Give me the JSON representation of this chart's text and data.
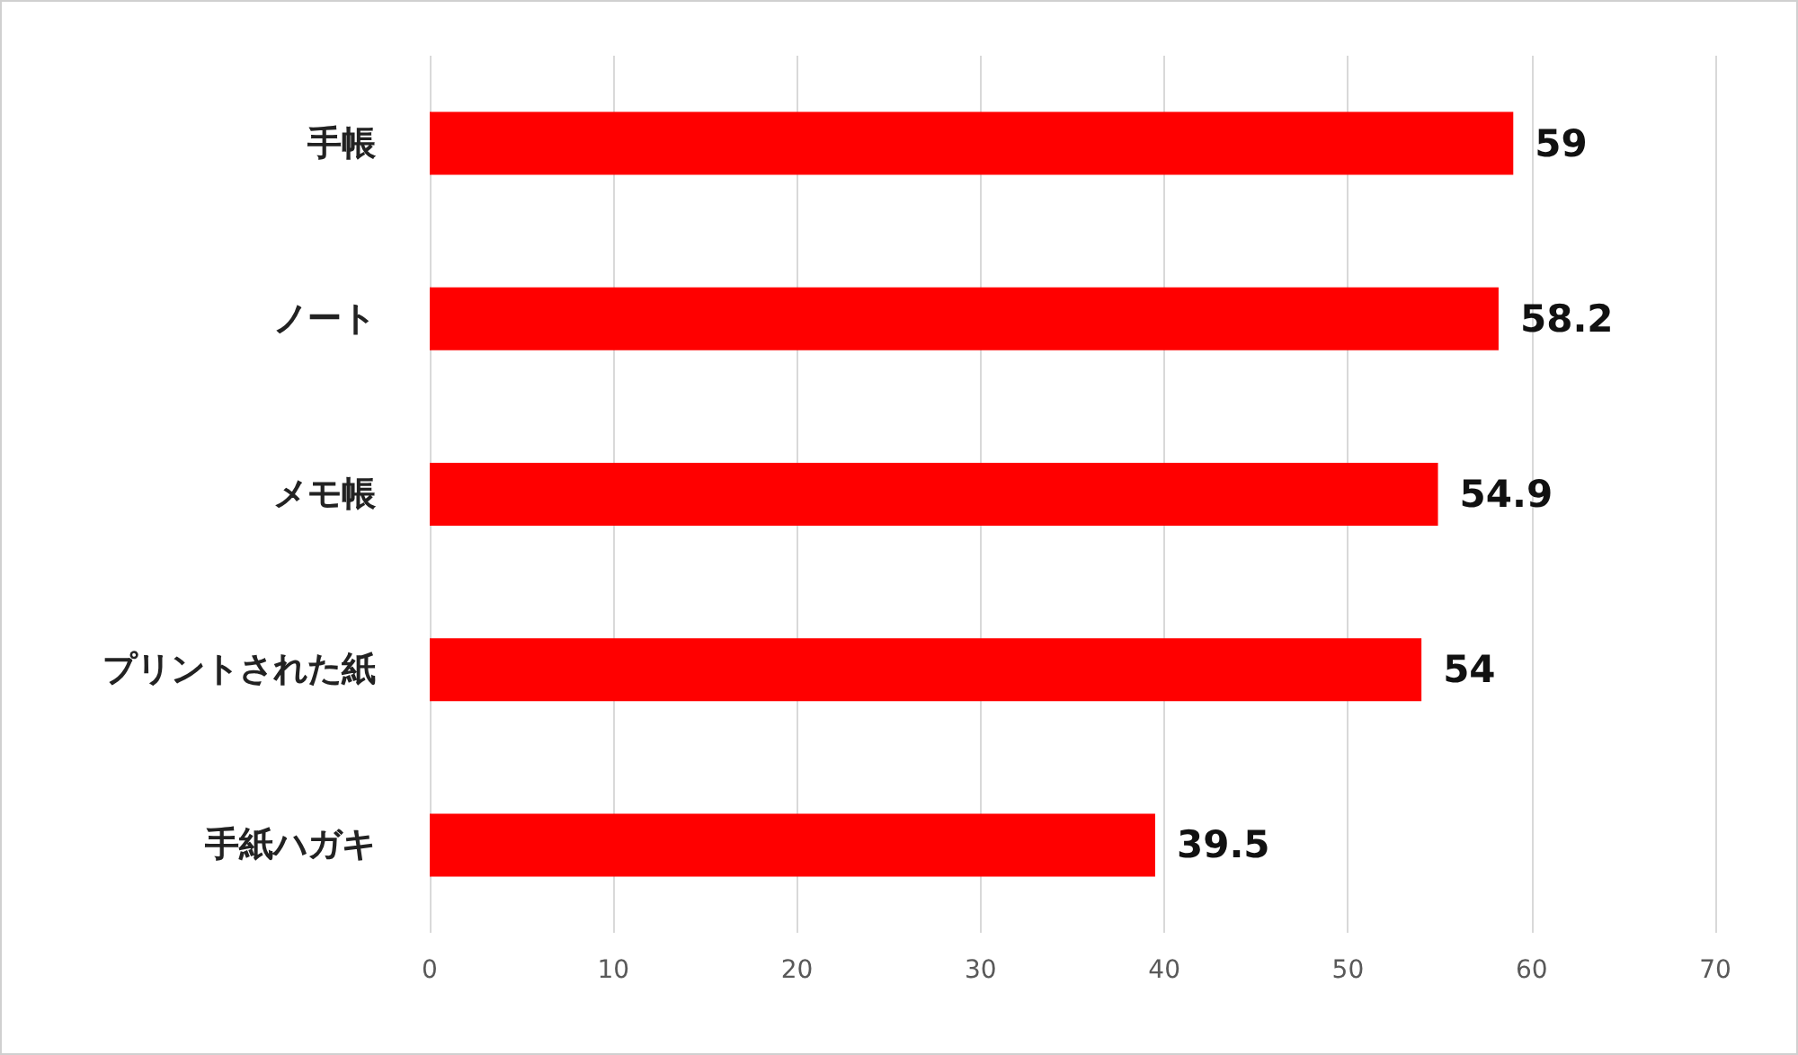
{
  "chart_data": {
    "type": "bar",
    "orientation": "horizontal",
    "categories": [
      "手帳",
      "ノート",
      "メモ帳",
      "プリントされた紙",
      "手紙ハガキ"
    ],
    "values": [
      59,
      58.2,
      54.9,
      54,
      39.5
    ],
    "color": "#ff0000",
    "xlim": [
      0,
      70
    ],
    "xticks": [
      0,
      10,
      20,
      30,
      40,
      50,
      60,
      70
    ],
    "grid": "x",
    "data_labels": true
  }
}
